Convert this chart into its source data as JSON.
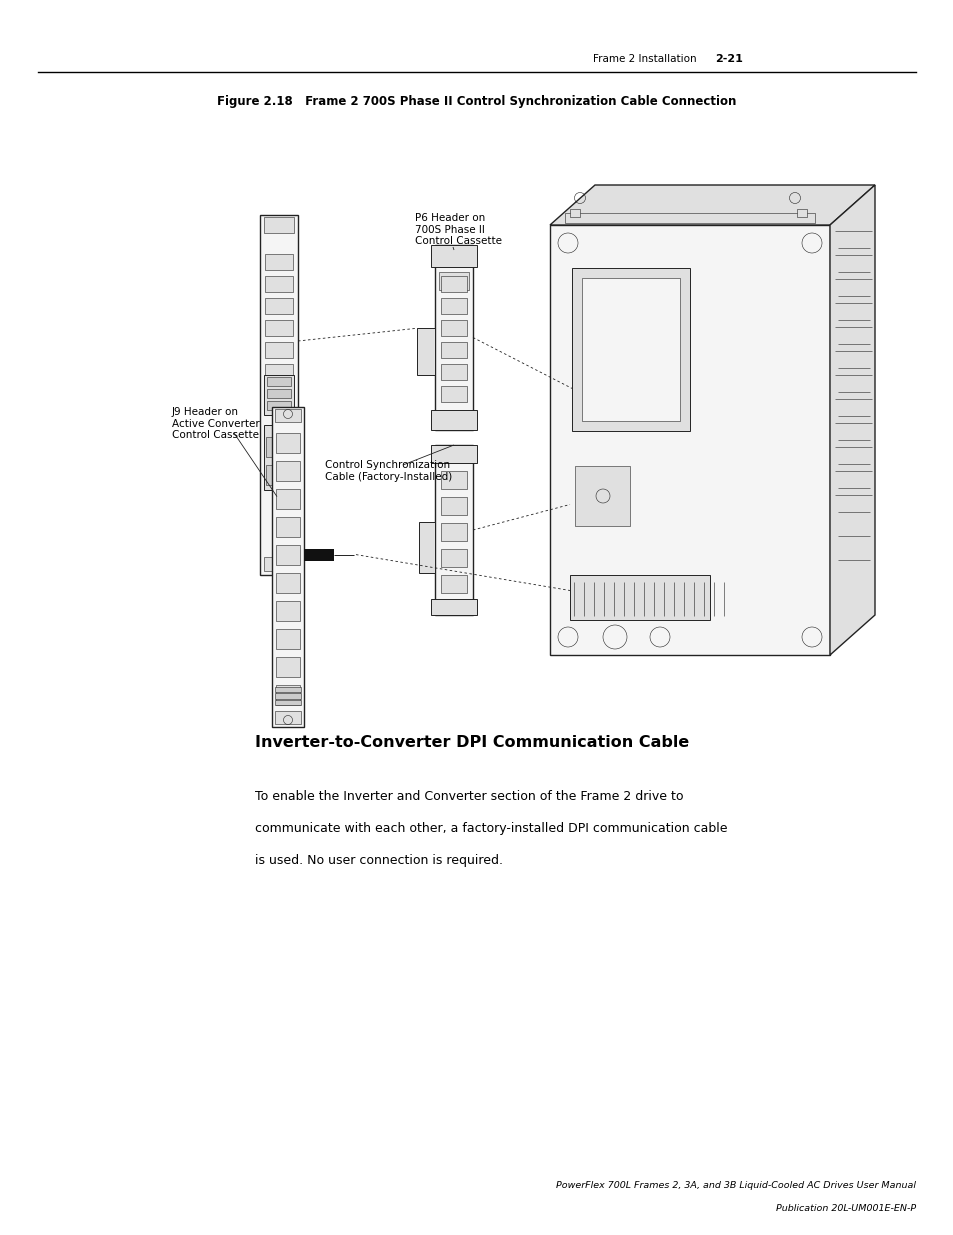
{
  "header_left": "Frame 2 Installation",
  "header_right": "2-21",
  "figure_title": "Figure 2.18   Frame 2 700S Phase II Control Synchronization Cable Connection",
  "section_heading": "Inverter-to-Converter DPI Communication Cable",
  "body_text": "To enable the Inverter and Converter section of the Frame 2 drive to\ncommunicate with each other, a factory-installed DPI communication cable\nis used. No user connection is required.",
  "footer_line1": "PowerFlex 700L Frames 2, 3A, and 3B Liquid-Cooled AC Drives User Manual",
  "footer_line2": "Publication 20L-UM001E-EN-P",
  "bg_color": "#ffffff",
  "text_color": "#000000",
  "page_width": 9.54,
  "page_height": 12.35,
  "p6_label": "P6 Header on\n700S Phase II\nControl Cassette",
  "ctrl_label": "Control Synchronization\nCable (Factory-Installed)",
  "j9_label": "J9 Header on\nActive Converter\nControl Cassette"
}
